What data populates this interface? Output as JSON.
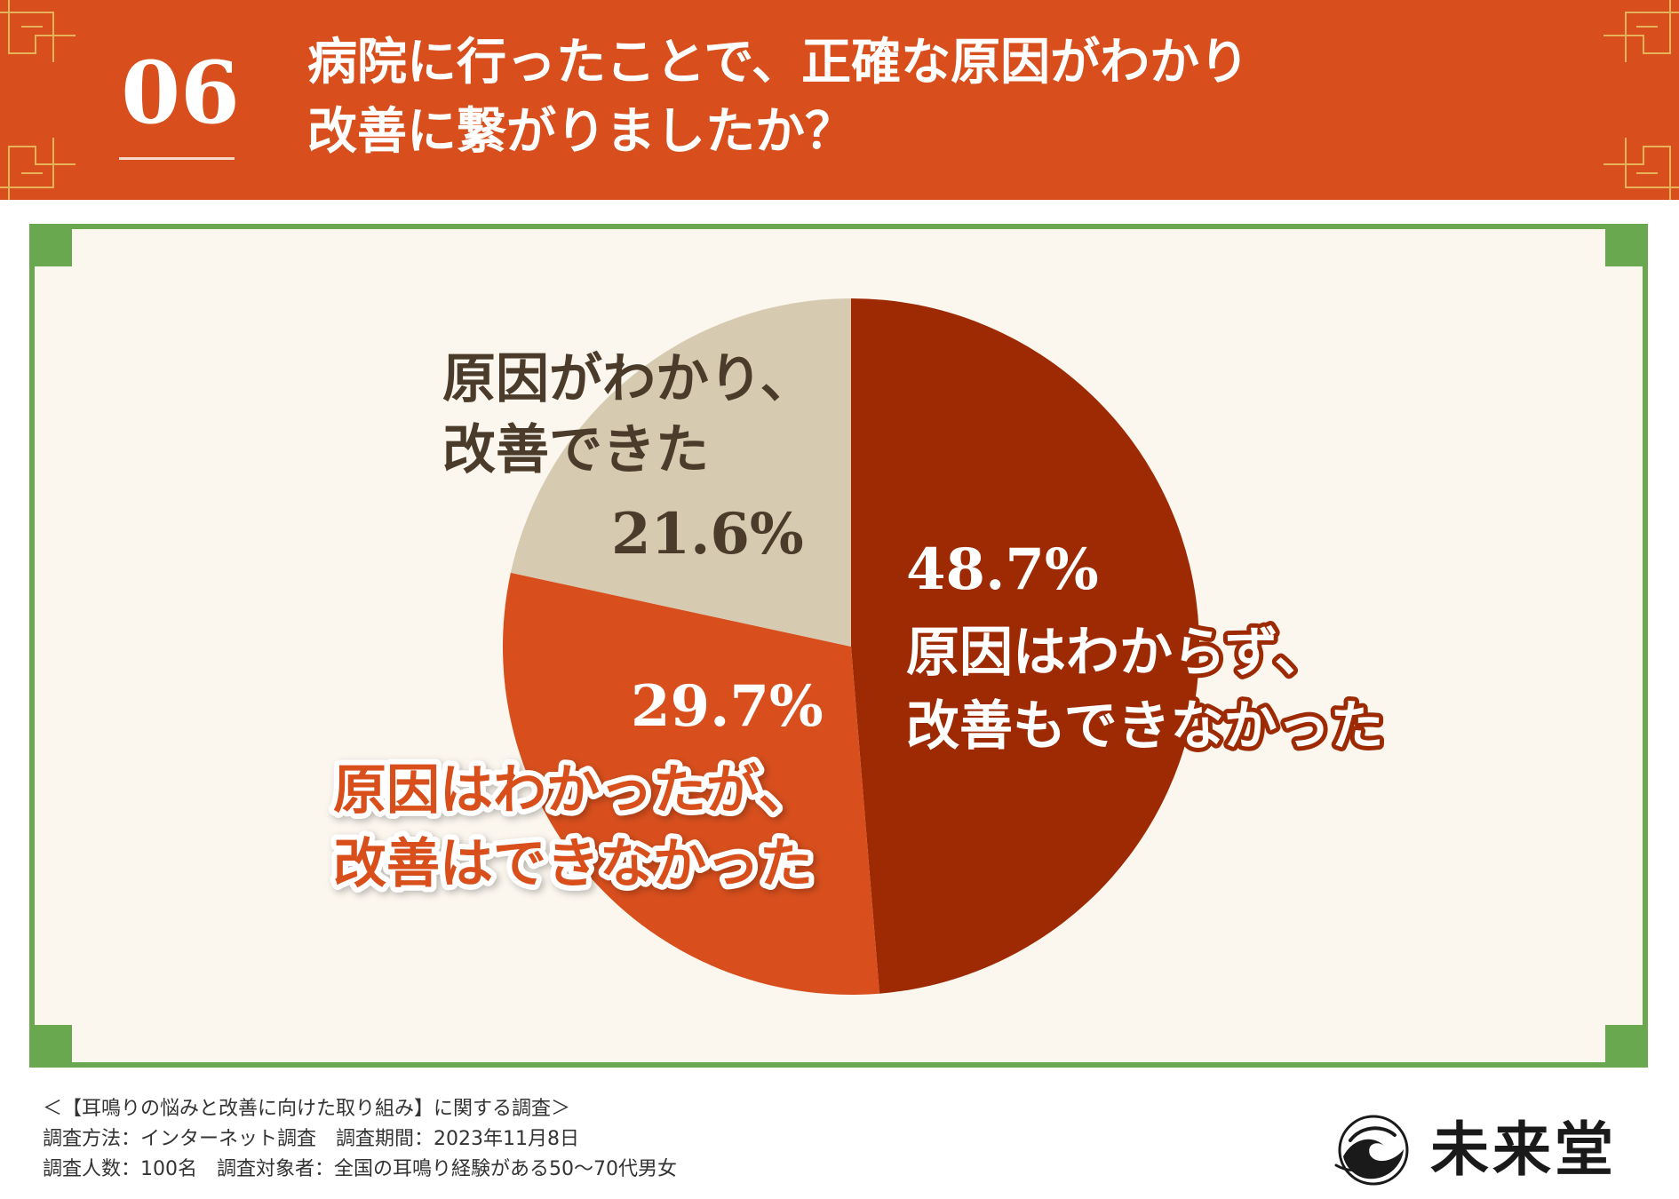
{
  "header": {
    "number": "06",
    "title_line1": "病院に行ったことで、正確な原因がわかり",
    "title_line2": "改善に繋がりましたか？"
  },
  "colors": {
    "header_bg": "#d84f1d",
    "panel_bg": "#fbf6ee",
    "panel_border": "#6aa84f",
    "slice_dark": "#9e2a03",
    "slice_orange": "#d84f1d",
    "slice_beige": "#d6cab0"
  },
  "chart_data": {
    "type": "pie",
    "slices": [
      {
        "label_line1": "原因はわからず、",
        "label_line2": "改善もできなかった",
        "value": 48.7,
        "value_text": "48.7%",
        "color": "#9e2a03"
      },
      {
        "label_line1": "原因はわかったが、",
        "label_line2": "改善はできなかった",
        "value": 29.7,
        "value_text": "29.7%",
        "color": "#d84f1d"
      },
      {
        "label_line1": "原因がわかり、",
        "label_line2": "改善できた",
        "value": 21.6,
        "value_text": "21.6%",
        "color": "#d6cab0"
      }
    ]
  },
  "footer": {
    "line1": "＜【耳鳴りの悩みと改善に向けた取り組み】に関する調査＞",
    "line2": "調査方法：インターネット調査　調査期間：2023年11月8日",
    "line3": "調査人数：100名　調査対象者：全国の耳鳴り経験がある50〜70代男女"
  },
  "logo": {
    "text": "未来堂",
    "icon": "wave-emblem-icon"
  }
}
